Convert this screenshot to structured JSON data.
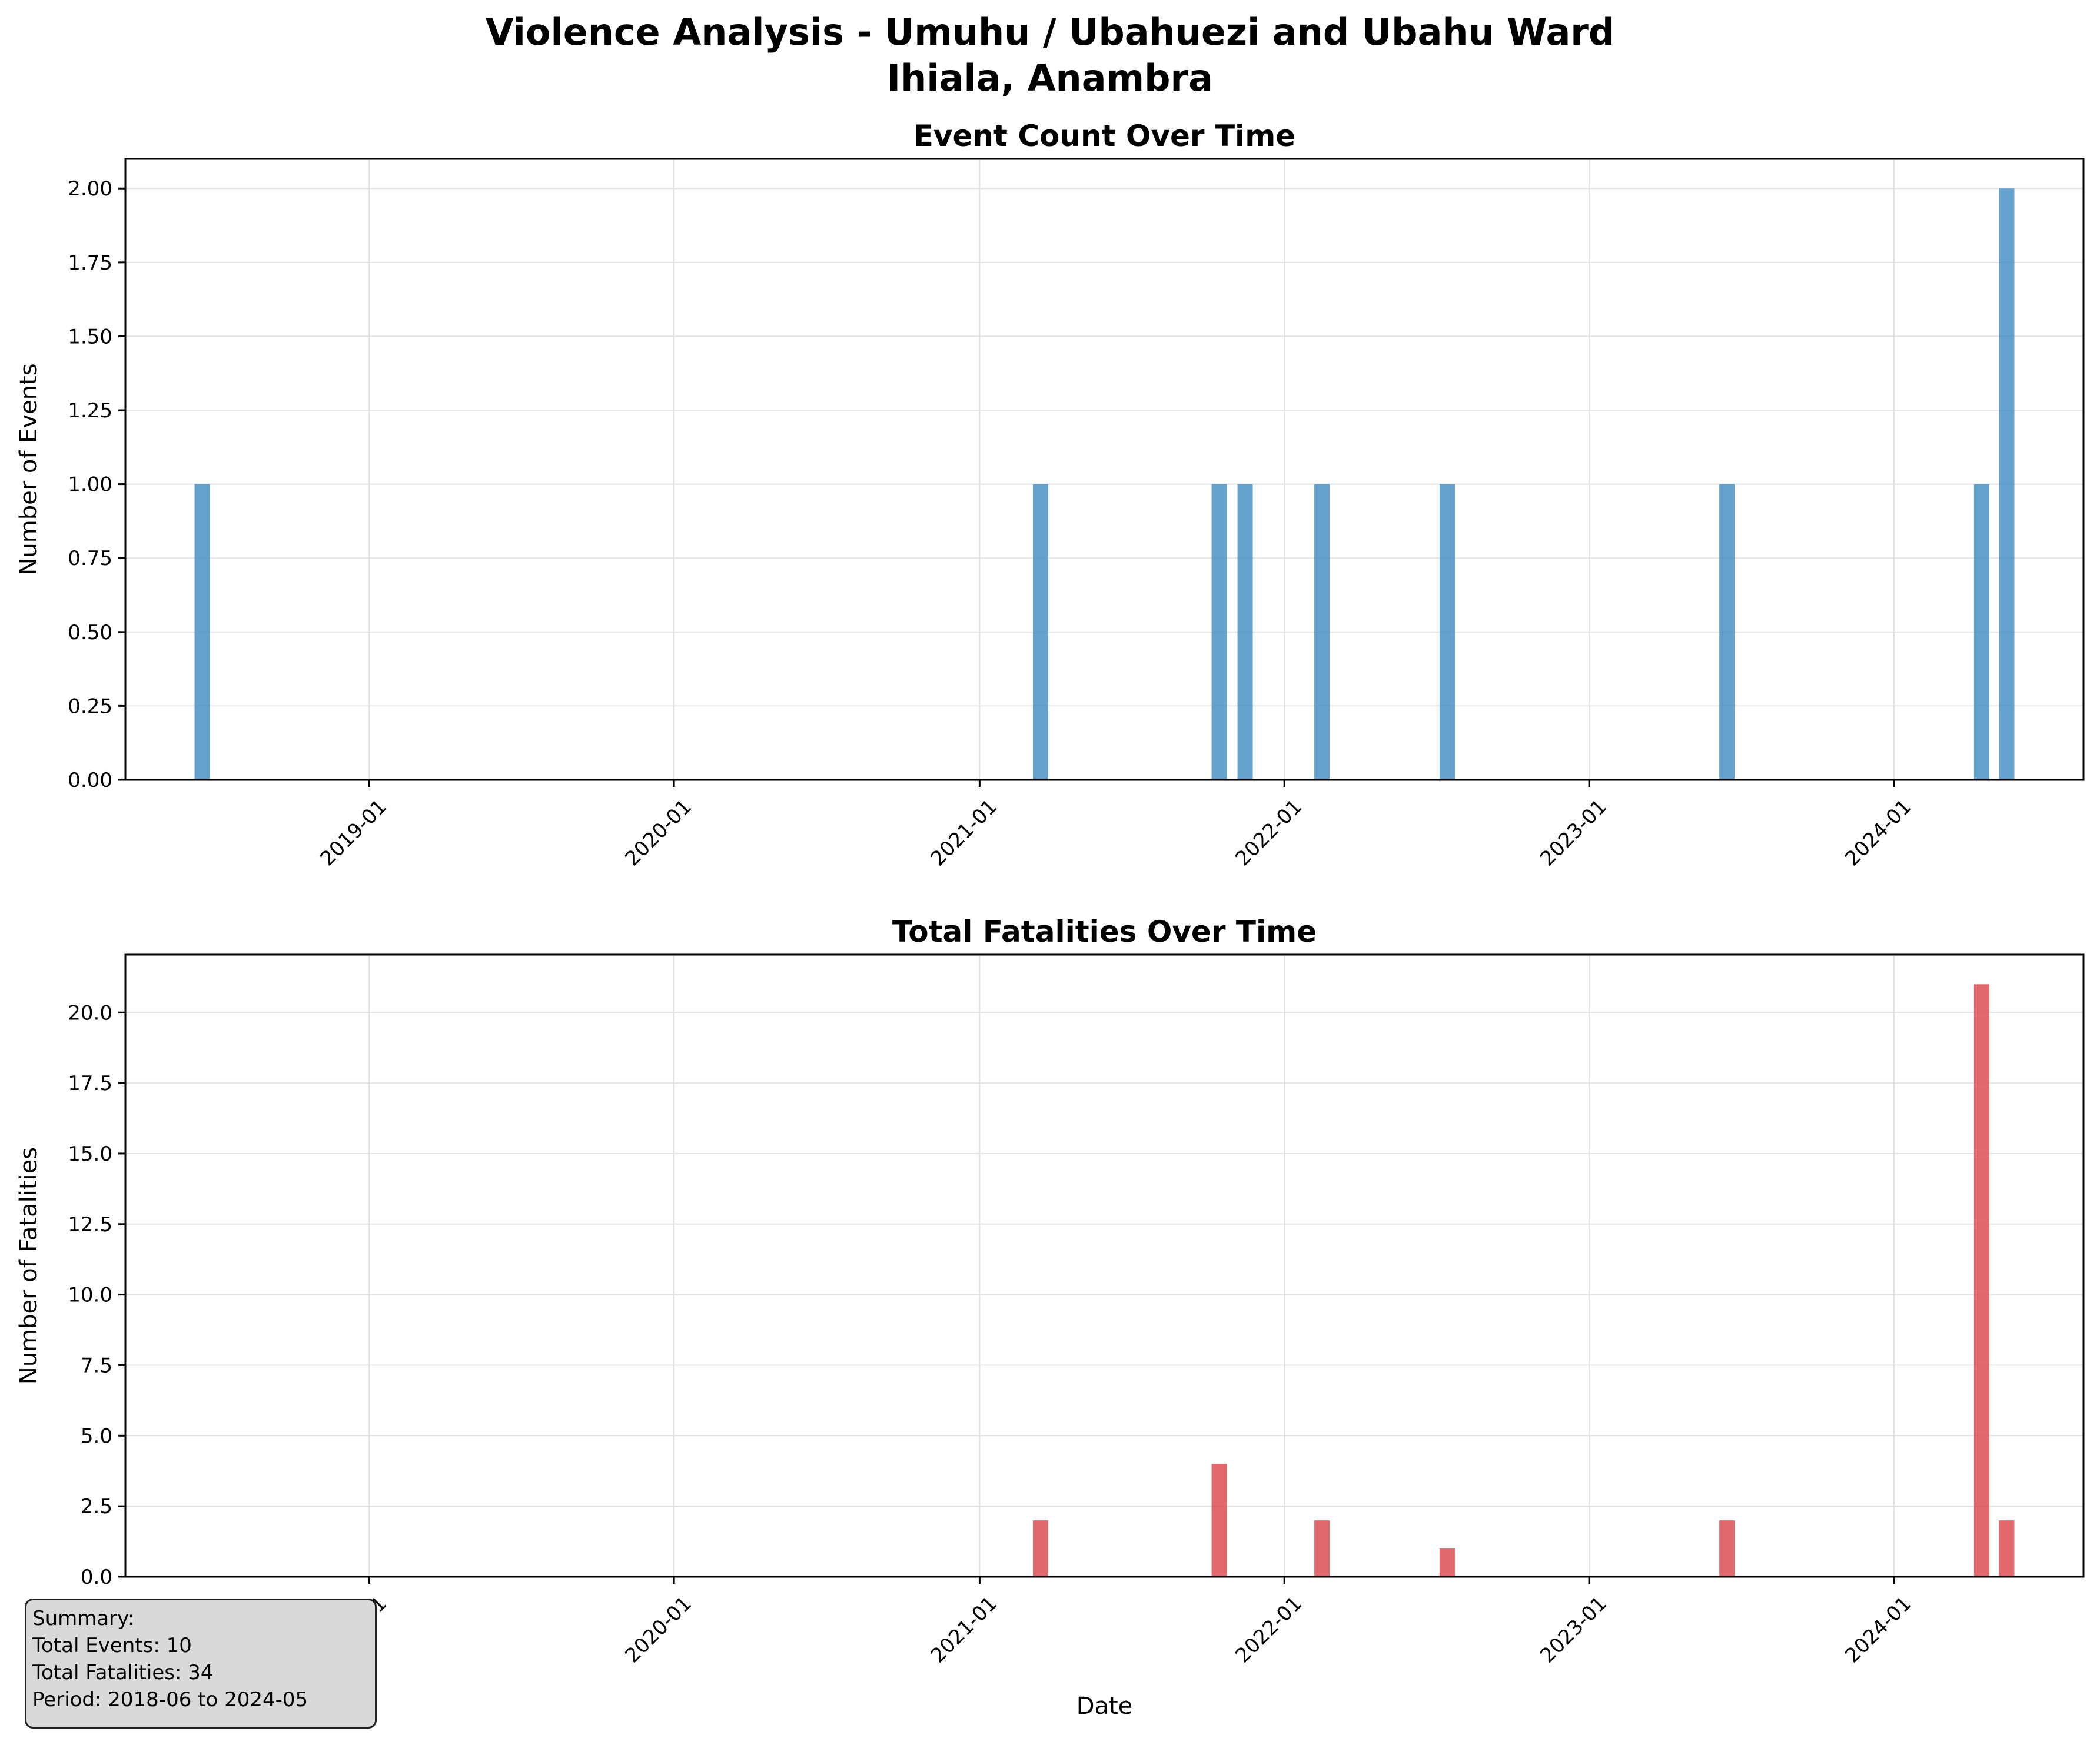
{
  "figure": {
    "title_line1": "Violence Analysis - Umuhu / Ubahuezi and Ubahu Ward",
    "title_line2": "Ihiala, Anambra"
  },
  "chart_data": [
    {
      "type": "bar",
      "title": "Event Count Over Time",
      "xlabel": "",
      "ylabel": "Number of Events",
      "ylim": [
        0,
        2.1
      ],
      "xlim": [
        "2018-03-15",
        "2024-08-15"
      ],
      "yticks": [
        0.0,
        0.25,
        0.5,
        0.75,
        1.0,
        1.25,
        1.5,
        1.75,
        2.0
      ],
      "ytick_labels": [
        "0.00",
        "0.25",
        "0.50",
        "0.75",
        "1.00",
        "1.25",
        "1.50",
        "1.75",
        "2.00"
      ],
      "xticks": [
        "2019-01-01",
        "2020-01-01",
        "2021-01-01",
        "2022-01-01",
        "2023-01-01",
        "2024-01-01"
      ],
      "xtick_labels": [
        "2019-01",
        "2020-01",
        "2021-01",
        "2022-01",
        "2023-01",
        "2024-01"
      ],
      "grid": true,
      "color": "#4a90c4",
      "x": [
        "2018-06",
        "2021-03",
        "2021-10",
        "2021-11",
        "2022-02",
        "2022-07",
        "2023-06",
        "2024-04",
        "2024-05"
      ],
      "values": [
        1,
        1,
        1,
        1,
        1,
        1,
        1,
        1,
        2
      ]
    },
    {
      "type": "bar",
      "title": "Total Fatalities Over Time",
      "xlabel": "Date",
      "ylabel": "Number of Fatalities",
      "ylim": [
        0,
        22.05
      ],
      "xlim": [
        "2018-03-15",
        "2024-08-15"
      ],
      "yticks": [
        0.0,
        2.5,
        5.0,
        7.5,
        10.0,
        12.5,
        15.0,
        17.5,
        20.0
      ],
      "ytick_labels": [
        "0.0",
        "2.5",
        "5.0",
        "7.5",
        "10.0",
        "12.5",
        "15.0",
        "17.5",
        "20.0"
      ],
      "xticks": [
        "2019-01-01",
        "2020-01-01",
        "2021-01-01",
        "2022-01-01",
        "2023-01-01",
        "2024-01-01"
      ],
      "xtick_labels": [
        "2019-01",
        "2020-01",
        "2021-01",
        "2022-01",
        "2023-01",
        "2024-01"
      ],
      "grid": true,
      "color": "#dc4f55",
      "x": [
        "2018-06",
        "2021-03",
        "2021-10",
        "2021-11",
        "2022-02",
        "2022-07",
        "2023-06",
        "2024-04",
        "2024-05"
      ],
      "values": [
        0,
        2,
        4,
        0,
        2,
        1,
        2,
        21,
        2
      ]
    }
  ],
  "summary": {
    "heading": "Summary:",
    "total_events": "Total Events: 10",
    "total_fatalities": "Total Fatalities: 34",
    "period": "Period: 2018-06 to 2024-05"
  }
}
